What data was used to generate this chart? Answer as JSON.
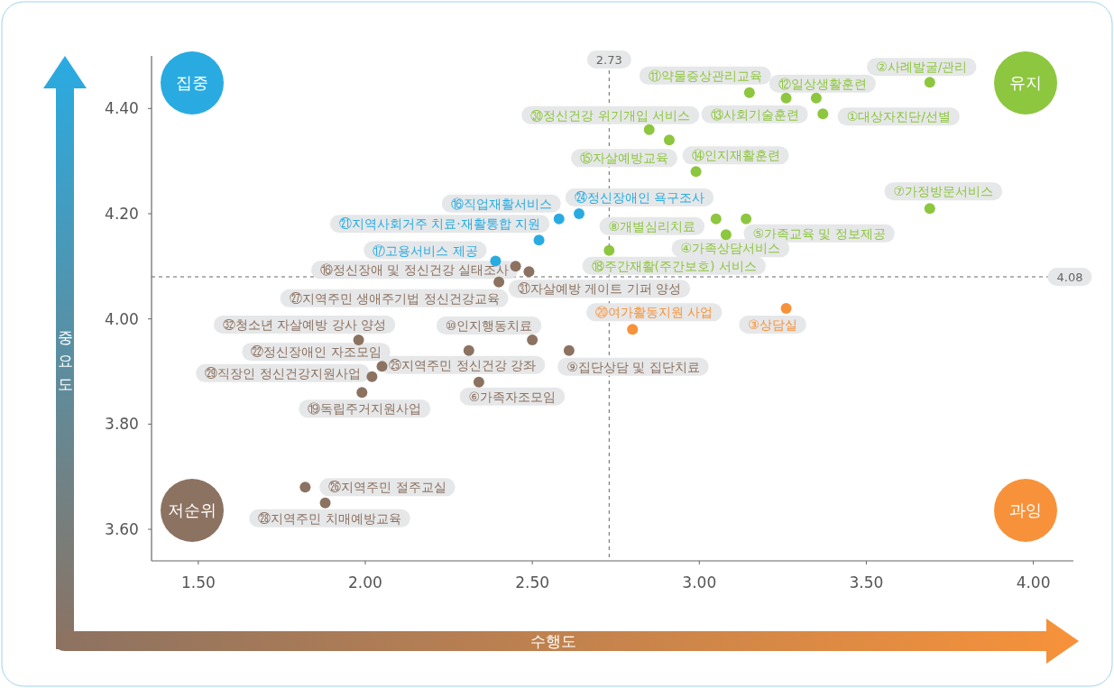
{
  "chart_data": {
    "type": "scatter",
    "xlabel": "수행도",
    "ylabel": "중요도",
    "xlim": [
      1.36,
      4.12
    ],
    "ylim": [
      3.54,
      4.5
    ],
    "xticks": [
      {
        "value": 1.5,
        "label": "1.50"
      },
      {
        "value": 2.0,
        "label": "2.00"
      },
      {
        "value": 2.5,
        "label": "2.50"
      },
      {
        "value": 3.0,
        "label": "3.00"
      },
      {
        "value": 3.5,
        "label": "3.50"
      },
      {
        "value": 4.0,
        "label": "4.00"
      }
    ],
    "yticks": [
      {
        "value": 3.6,
        "label": "3.60"
      },
      {
        "value": 3.8,
        "label": "3.80"
      },
      {
        "value": 4.0,
        "label": "4.00"
      },
      {
        "value": 4.2,
        "label": "4.20"
      },
      {
        "value": 4.4,
        "label": "4.40"
      }
    ],
    "marker": "circle",
    "ref_lines": [
      {
        "axis": "x",
        "value": 2.73,
        "label": "2.73",
        "color": "#666666",
        "line_style": "dashed"
      },
      {
        "axis": "y",
        "value": 4.08,
        "label": "4.08",
        "color": "#666666",
        "line_style": "dashed"
      }
    ],
    "annotations": [
      "집중",
      "유지",
      "저순위",
      "과잉"
    ],
    "series": [
      {
        "color": "#8dc63f",
        "x": [
          3.69,
          3.15,
          3.35,
          3.26,
          3.37,
          2.85,
          2.91,
          2.99,
          3.69,
          3.05,
          3.14,
          3.08,
          2.73
        ],
        "values": [
          4.45,
          4.43,
          4.42,
          4.42,
          4.39,
          4.36,
          4.34,
          4.28,
          4.21,
          4.19,
          4.19,
          4.16,
          4.13
        ],
        "value_labels": [
          "②사례발굴/관리",
          "⑪약물증상관리교육",
          "⑫일상생활훈련",
          "⑬사회기술훈련",
          "①대상자진단/선별",
          "㉚정신건강 위기개입 서비스",
          "⑮자살예방교육",
          "⑭인지재활훈련",
          "⑦가정방문서비스",
          "⑧개별심리치료",
          "⑤가족교육 및 정보제공",
          "④가족상담서비스",
          "⑱주간재활(주간보호) 서비스"
        ]
      },
      {
        "color": "#29abe2",
        "x": [
          2.58,
          2.64,
          2.52,
          2.39
        ],
        "values": [
          4.19,
          4.2,
          4.15,
          4.11
        ],
        "value_labels": [
          "⑯직업재활서비스",
          "㉔정신장애인 욕구조사",
          "㉑지역사회거주 치료·재활통합 지원",
          "⑰고용서비스 제공"
        ]
      },
      {
        "color": "#8c7261",
        "x": [
          2.45,
          2.49,
          2.4,
          1.98,
          2.5,
          2.05,
          2.02,
          2.31,
          2.61,
          2.34,
          1.99,
          1.82,
          1.88
        ],
        "values": [
          4.1,
          4.09,
          4.07,
          3.96,
          3.96,
          3.91,
          3.89,
          3.94,
          3.94,
          3.88,
          3.86,
          3.68,
          3.65
        ],
        "value_labels": [
          "⑯정신장애 및 정신건강 실태조사",
          "㉛자살예방 게이트 기퍼 양성",
          "㉗지역주민 생애주기법 정신건강교육",
          "㉜청소년 자살예방 강사 양성",
          "⑩인지행동치료",
          "㉒정신장애인 자조모임",
          "㉙직장인 정신건강지원사업",
          "㉕지역주민 정신건강 강좌",
          "⑨집단상담 및 집단치료",
          "⑥가족자조모임",
          "⑲독립주거지원사업",
          "㉖지역주민 절주교실",
          "㉘지역주민 치매예방교육"
        ]
      },
      {
        "color": "#f7923a",
        "x": [
          2.8,
          3.26
        ],
        "values": [
          3.98,
          4.02
        ],
        "value_labels": [
          "⑳여가활동지원 사업",
          "③상담실"
        ]
      }
    ]
  }
}
